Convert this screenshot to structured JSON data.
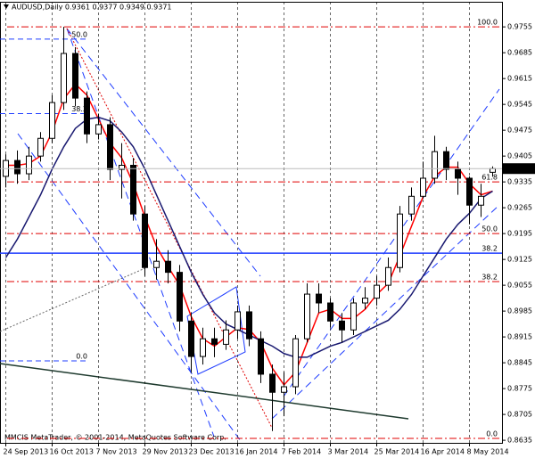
{
  "chart_data": {
    "type": "candlestick",
    "title": "AUDUSD,Daily  0.9361 0.9377 0.9349 0.9371",
    "footer": "MMCIS MetaTrader, © 2001-2014, MetaQuotes Software Corp.",
    "categories": [
      "24 Sep 2013",
      null,
      null,
      null,
      "16 Oct 2013",
      null,
      null,
      null,
      "7 Nov 2013",
      null,
      null,
      null,
      "29 Nov 2013",
      null,
      null,
      null,
      "23 Dec 2013",
      null,
      null,
      null,
      "16 Jan 2014",
      null,
      null,
      null,
      "7 Feb 2014",
      null,
      null,
      null,
      "3 Mar 2014",
      null,
      null,
      null,
      "25 Mar 2014",
      null,
      null,
      null,
      "16 Apr 2014",
      null,
      null,
      null,
      "8 May 2014",
      null,
      null
    ],
    "open": [
      0.935,
      0.9393,
      0.9357,
      0.9405,
      0.9453,
      0.955,
      0.9683,
      0.9562,
      0.9465,
      0.949,
      0.9369,
      0.938,
      0.9248,
      0.9103,
      0.912,
      0.909,
      0.8958,
      0.8862,
      0.891,
      0.8895,
      0.8934,
      0.8983,
      0.891,
      0.8814,
      0.8765,
      0.878,
      0.891,
      0.9031,
      0.9007,
      0.8958,
      0.8934,
      0.9007,
      0.902,
      0.9055,
      0.9103,
      0.9248,
      0.9296,
      0.9345,
      0.9417,
      0.9369,
      0.9345,
      0.9272,
      0.9361
    ],
    "high": [
      0.941,
      0.942,
      0.943,
      0.947,
      0.957,
      0.9755,
      0.97,
      0.958,
      0.952,
      0.951,
      0.944,
      0.94,
      0.927,
      0.918,
      0.915,
      0.911,
      0.898,
      0.894,
      0.894,
      0.896,
      0.9,
      0.9,
      0.893,
      0.884,
      0.882,
      0.892,
      0.906,
      0.906,
      0.902,
      0.898,
      0.902,
      0.905,
      0.908,
      0.913,
      0.927,
      0.932,
      0.939,
      0.946,
      0.943,
      0.939,
      0.935,
      0.933,
      0.9377
    ],
    "low": [
      0.932,
      0.933,
      0.934,
      0.939,
      0.944,
      0.953,
      0.954,
      0.944,
      0.945,
      0.934,
      0.929,
      0.923,
      0.908,
      0.907,
      0.906,
      0.893,
      0.882,
      0.884,
      0.886,
      0.888,
      0.891,
      0.889,
      0.879,
      0.866,
      0.87,
      0.876,
      0.89,
      0.898,
      0.894,
      0.89,
      0.892,
      0.899,
      0.9,
      0.904,
      0.909,
      0.923,
      0.929,
      0.933,
      0.934,
      0.93,
      0.922,
      0.924,
      0.9349
    ],
    "close": [
      0.9393,
      0.9357,
      0.9405,
      0.9453,
      0.955,
      0.9683,
      0.9562,
      0.9465,
      0.949,
      0.9369,
      0.938,
      0.9248,
      0.9103,
      0.912,
      0.909,
      0.8958,
      0.8862,
      0.891,
      0.8895,
      0.8934,
      0.8983,
      0.891,
      0.8814,
      0.8765,
      0.878,
      0.891,
      0.9031,
      0.9007,
      0.8958,
      0.8934,
      0.9007,
      0.902,
      0.9055,
      0.9103,
      0.9248,
      0.9296,
      0.9345,
      0.9417,
      0.9369,
      0.9345,
      0.9272,
      0.9296,
      0.9371
    ],
    "series": [
      {
        "color": "#ff0000",
        "values": [
          0.938,
          0.938,
          0.9385,
          0.9405,
          0.947,
          0.956,
          0.96,
          0.957,
          0.9505,
          0.944,
          0.94,
          0.933,
          0.924,
          0.916,
          0.9105,
          0.9055,
          0.897,
          0.891,
          0.889,
          0.8915,
          0.894,
          0.8935,
          0.89,
          0.883,
          0.8785,
          0.882,
          0.89,
          0.898,
          0.899,
          0.8965,
          0.8965,
          0.899,
          0.903,
          0.906,
          0.9135,
          0.9215,
          0.9295,
          0.935,
          0.9375,
          0.9375,
          0.933,
          0.93,
          0.931
        ]
      },
      {
        "color": "#191970",
        "values": [
          0.913,
          0.918,
          0.924,
          0.93,
          0.937,
          0.943,
          0.948,
          0.9505,
          0.951,
          0.95,
          0.947,
          0.943,
          0.937,
          0.93,
          0.923,
          0.916,
          0.909,
          0.903,
          0.898,
          0.895,
          0.8935,
          0.892,
          0.8905,
          0.889,
          0.887,
          0.886,
          0.886,
          0.8875,
          0.889,
          0.89,
          0.8915,
          0.893,
          0.8945,
          0.896,
          0.899,
          0.903,
          0.908,
          0.913,
          0.918,
          0.922,
          0.925,
          0.929,
          0.931
        ]
      }
    ],
    "fib_red": [
      {
        "label": "100.0",
        "value": 0.9755
      },
      {
        "label": "61.8",
        "value": 0.9335
      },
      {
        "label": "50.0",
        "value": 0.9195
      },
      {
        "label": "38.2",
        "value": 0.9065
      },
      {
        "label": "0.0",
        "value": 0.864
      }
    ],
    "fib_blue": [
      {
        "label": "50.0",
        "value": 0.9722
      },
      {
        "label": "38.2",
        "value": 0.952
      },
      {
        "label": "0.0",
        "value": 0.885
      }
    ],
    "level_line": {
      "label": "38.2",
      "value": 0.9142
    },
    "ylim": [
      0.8628,
      0.9823
    ],
    "yticks": [
      0.9755,
      0.9685,
      0.9615,
      0.9545,
      0.9475,
      0.9405,
      0.9335,
      0.9265,
      0.9195,
      0.9125,
      0.9055,
      0.8985,
      0.8915,
      0.8845,
      0.8775,
      0.8705,
      0.8635
    ]
  }
}
